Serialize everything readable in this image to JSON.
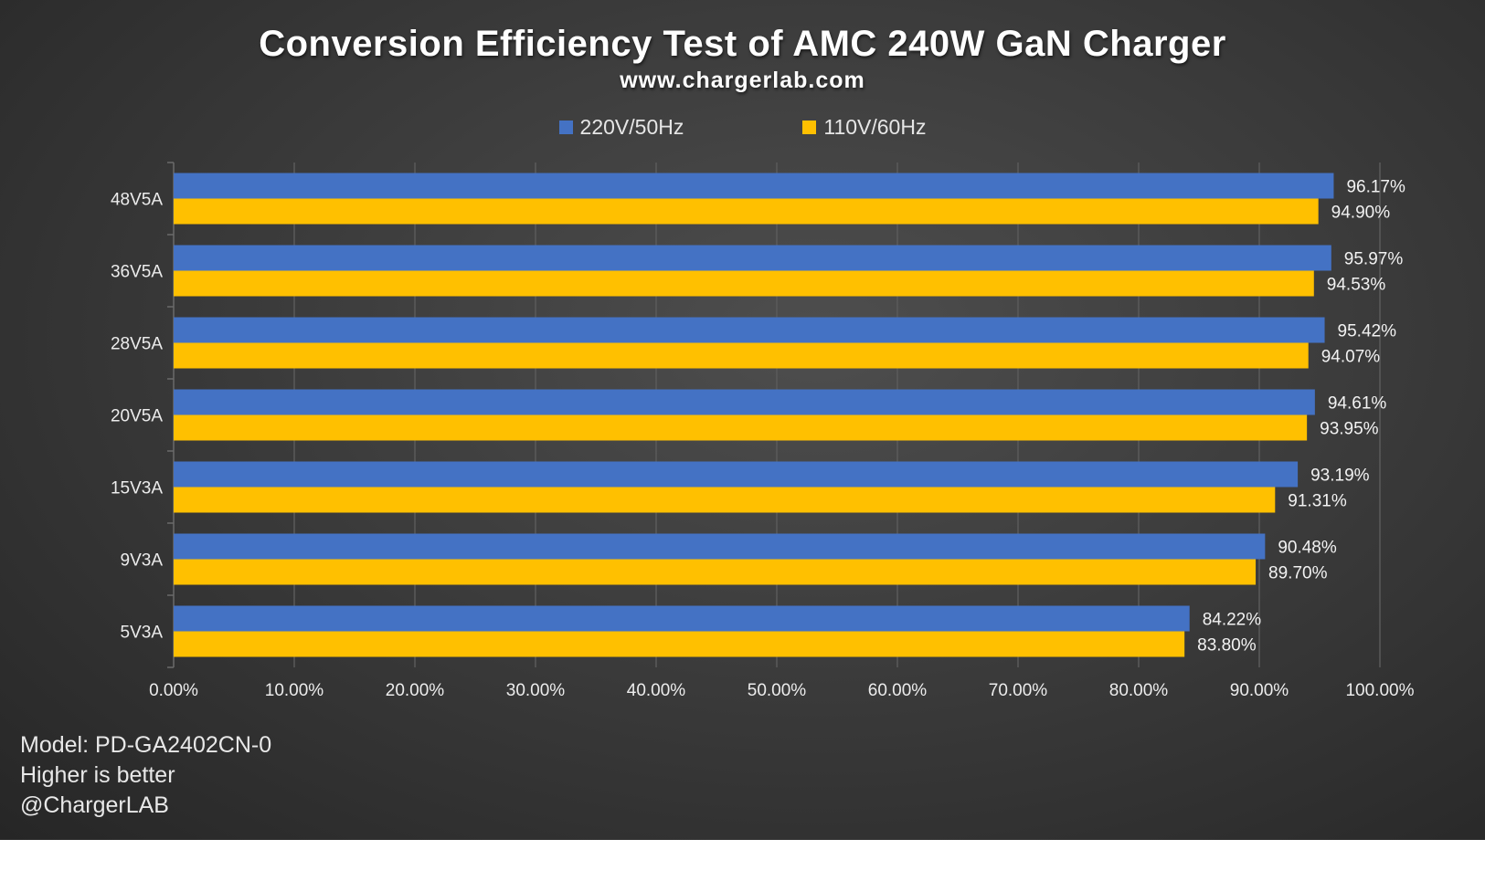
{
  "chart_data": {
    "type": "bar",
    "orientation": "horizontal",
    "title": "Conversion Efficiency Test of AMC 240W GaN Charger",
    "subtitle": "www.chargerlab.com",
    "categories": [
      "48V5A",
      "36V5A",
      "28V5A",
      "20V5A",
      "15V3A",
      "9V3A",
      "5V3A"
    ],
    "series": [
      {
        "name": "220V/50Hz",
        "color": "#4472c4",
        "values": [
          96.17,
          95.97,
          95.42,
          94.61,
          93.19,
          90.48,
          84.22
        ]
      },
      {
        "name": "110V/60Hz",
        "color": "#ffc000",
        "values": [
          94.9,
          94.53,
          94.07,
          93.95,
          91.31,
          89.7,
          83.8
        ]
      }
    ],
    "data_labels": [
      [
        "96.17%",
        "95.97%",
        "95.42%",
        "94.61%",
        "93.19%",
        "90.48%",
        "84.22%"
      ],
      [
        "94.90%",
        "94.53%",
        "94.07%",
        "93.95%",
        "91.31%",
        "89.70%",
        "83.80%"
      ]
    ],
    "xlim": [
      0,
      100
    ],
    "xticks": [
      "0.00%",
      "10.00%",
      "20.00%",
      "30.00%",
      "40.00%",
      "50.00%",
      "60.00%",
      "70.00%",
      "80.00%",
      "90.00%",
      "100.00%"
    ],
    "grid": true,
    "legend": "top"
  },
  "notes": [
    "Model: PD-GA2402CN-0",
    "Higher is better",
    "@ChargerLAB"
  ]
}
